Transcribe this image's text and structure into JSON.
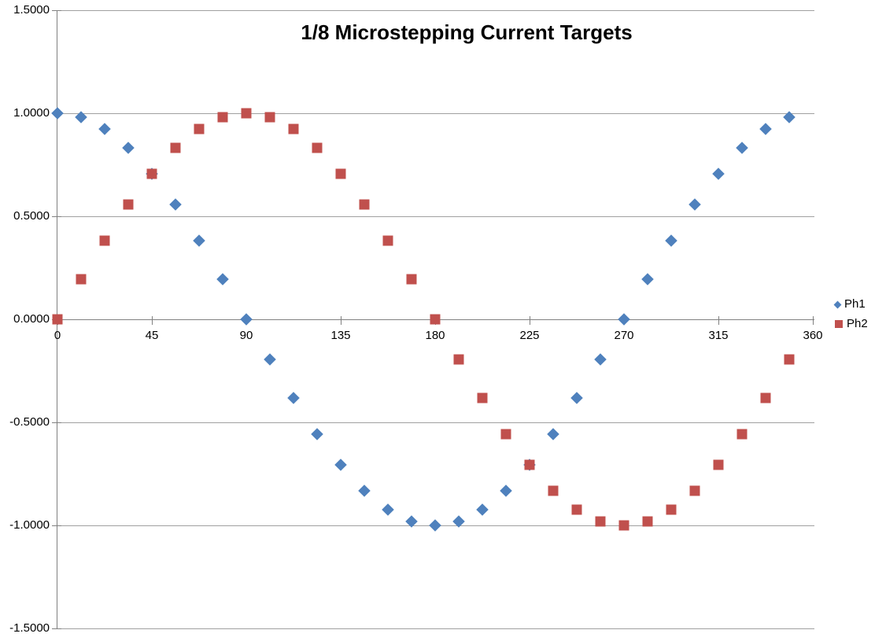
{
  "chart_data": {
    "type": "scatter",
    "title": "1/8 Microstepping Current Targets",
    "xlabel": "",
    "ylabel": "",
    "xlim": [
      0,
      360
    ],
    "ylim": [
      -1.5,
      1.5
    ],
    "grid": true,
    "legend_position": "right",
    "x_ticks": [
      0,
      45,
      90,
      135,
      180,
      225,
      270,
      315,
      360
    ],
    "y_ticks": [
      1.5,
      1.0,
      0.5,
      0.0,
      -0.5,
      -1.0,
      -1.5
    ],
    "y_tick_labels": [
      "1.5000",
      "1.0000",
      "0.5000",
      "0.0000",
      "-0.5000",
      "-1.0000",
      "-1.5000"
    ],
    "x": [
      0,
      11.25,
      22.5,
      33.75,
      45,
      56.25,
      67.5,
      78.75,
      90,
      101.25,
      112.5,
      123.75,
      135,
      146.25,
      157.5,
      168.75,
      180,
      191.25,
      202.5,
      213.75,
      225,
      236.25,
      247.5,
      258.75,
      270,
      281.25,
      292.5,
      303.75,
      315,
      326.25,
      337.5,
      348.75
    ],
    "series": [
      {
        "name": "Ph1",
        "marker": "diamond",
        "color": "#4F81BD",
        "values": [
          1.0,
          0.9808,
          0.9239,
          0.8315,
          0.7071,
          0.5556,
          0.3827,
          0.1951,
          0.0,
          -0.1951,
          -0.3827,
          -0.5556,
          -0.7071,
          -0.8315,
          -0.9239,
          -0.9808,
          -1.0,
          -0.9808,
          -0.9239,
          -0.8315,
          -0.7071,
          -0.5556,
          -0.3827,
          -0.1951,
          0.0,
          0.1951,
          0.3827,
          0.5556,
          0.7071,
          0.8315,
          0.9239,
          0.9808
        ]
      },
      {
        "name": "Ph2",
        "marker": "square",
        "color": "#C0504D",
        "values": [
          0.0,
          0.1951,
          0.3827,
          0.5556,
          0.7071,
          0.8315,
          0.9239,
          0.9808,
          1.0,
          0.9808,
          0.9239,
          0.8315,
          0.7071,
          0.5556,
          0.3827,
          0.1951,
          0.0,
          -0.1951,
          -0.3827,
          -0.5556,
          -0.7071,
          -0.8315,
          -0.9239,
          -0.9808,
          -1.0,
          -0.9808,
          -0.9239,
          -0.8315,
          -0.7071,
          -0.5556,
          -0.3827,
          -0.1951
        ]
      }
    ]
  },
  "colors": {
    "background": "#FFFFFF",
    "gridline": "#A0A0A0",
    "axis": "#808080",
    "text": "#000000"
  }
}
